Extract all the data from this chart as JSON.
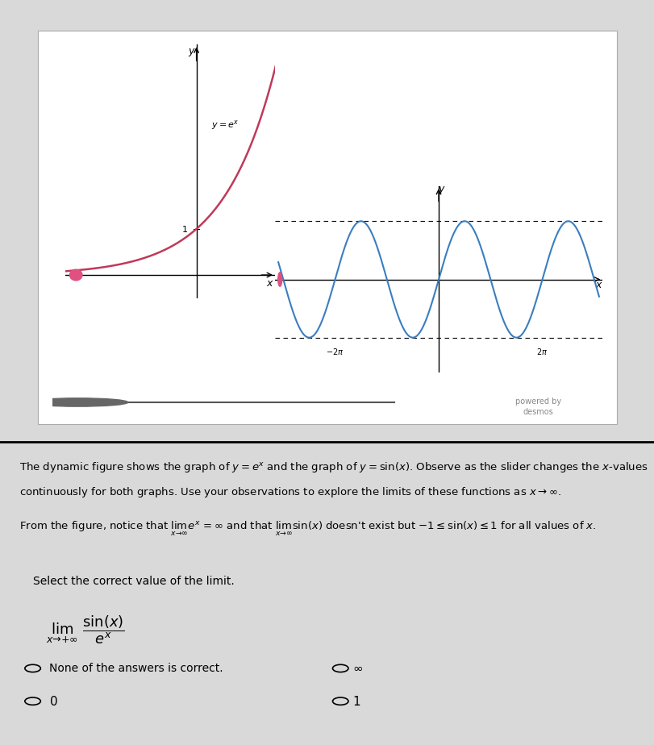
{
  "bg_color": "#d9d9d9",
  "panel_bg": "#ffffff",
  "panel_color": "#e8e8e8",
  "exp_curve_color": "#c0395a",
  "sin_curve_color": "#3a7ebf",
  "slider_dot_color": "#e05080",
  "slider_line_color": "#555555",
  "axis_color": "#111111",
  "label_color": "#111111",
  "desmos_color": "#888888",
  "text_color": "#111111",
  "title1": "The dynamic figure shows the graph of $y = e^x$ and the graph of $y = \\sin(x)$. Observe as the slider changes the $x$-values",
  "title2": "continuously for both graphs. Use your observations to explore the limits of these functions as $x \\to \\infty$.",
  "title3": "From the figure, notice that $\\lim_{x \\to \\infty} e^x = \\infty$ and that $\\lim_{x \\to \\infty} \\sin(x)$ doesn't exist but $-1 \\leq \\sin(x) \\leq 1$ for all values of $x$.",
  "question_text": "Select the correct value of the limit.",
  "limit_expr": "$\\lim_{x \\to +\\infty} \\dfrac{\\sin(x)}{e^x}$",
  "options": [
    "None of the answers is correct.",
    "$\\infty$",
    "$0$",
    "$1$"
  ]
}
